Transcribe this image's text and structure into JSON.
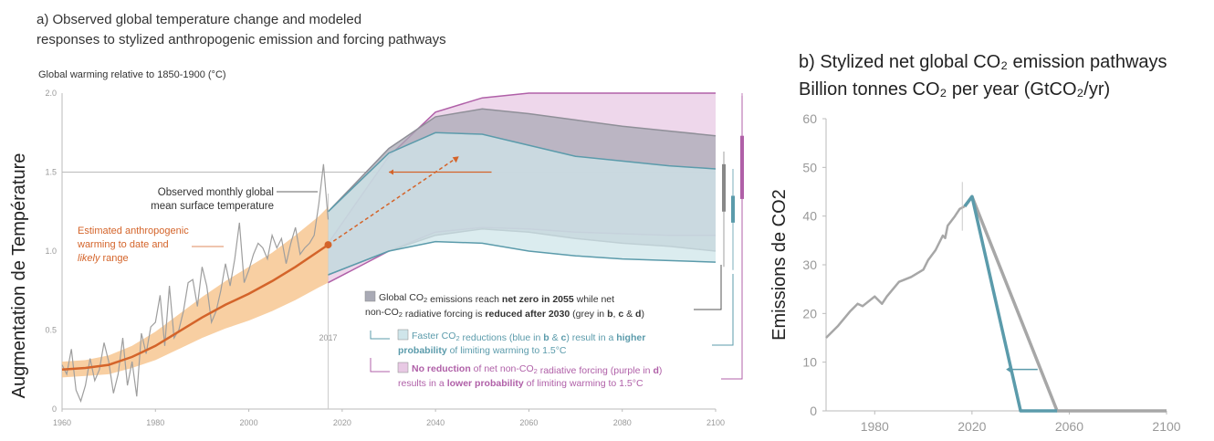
{
  "colors": {
    "observed": "#9e9e9e",
    "anthro": "#d4642a",
    "anthro_band": "#f6c38b",
    "grey": "#8f8f98",
    "blue": "#5b9bab",
    "purple": "#b060a8",
    "callout": "#333333"
  },
  "chart_data": [
    {
      "panel": "a",
      "type": "line",
      "title": "a) Observed global temperature change and modeled",
      "title_line2": "responses to stylized anthropogenic emission and forcing pathways",
      "ylabel_top": "Global warming relative to 1850-1900 (°C)",
      "ylabel": "Augmentation de  Température",
      "xlim": [
        1960,
        2100
      ],
      "ylim": [
        0,
        2.0
      ],
      "xticks": [
        1960,
        1980,
        2000,
        2020,
        2040,
        2060,
        2080,
        2100
      ],
      "xtick_labels": [
        "1960",
        "1980",
        "2000",
        "2020",
        "2040",
        "2060",
        "2080",
        "2100"
      ],
      "yticks": [
        0,
        0.5,
        1.0,
        1.5,
        2.0
      ],
      "ytick_labels": [
        "0",
        "0.5",
        "1.0",
        "1.5",
        "2.0"
      ],
      "year_marker": {
        "x": 2017,
        "label": "2017"
      },
      "reference_line": 1.5,
      "annotations": {
        "observed": [
          "Observed monthly global",
          "mean surface temperature"
        ],
        "anthro_l1": "Estimated anthropogenic",
        "anthro_l2": "warming to date and",
        "anthro_l3a": "likely",
        "anthro_l3b": " range"
      },
      "series": [
        {
          "key": "anthro",
          "x": [
            1960,
            1965,
            1970,
            1975,
            1980,
            1985,
            1990,
            1995,
            2000,
            2005,
            2010,
            2015,
            2017
          ],
          "y": [
            0.25,
            0.26,
            0.28,
            0.33,
            0.4,
            0.49,
            0.58,
            0.66,
            0.73,
            0.81,
            0.9,
            1.0,
            1.04
          ],
          "band_low": [
            0.2,
            0.21,
            0.22,
            0.26,
            0.31,
            0.38,
            0.45,
            0.51,
            0.56,
            0.62,
            0.69,
            0.77,
            0.8
          ],
          "band_high": [
            0.3,
            0.31,
            0.34,
            0.4,
            0.49,
            0.6,
            0.71,
            0.81,
            0.9,
            0.99,
            1.1,
            1.22,
            1.28
          ]
        },
        {
          "key": "observed",
          "x": [
            1960,
            1961,
            1962,
            1963,
            1964,
            1965,
            1966,
            1967,
            1968,
            1969,
            1970,
            1971,
            1972,
            1973,
            1974,
            1975,
            1976,
            1977,
            1978,
            1979,
            1980,
            1981,
            1982,
            1983,
            1984,
            1985,
            1986,
            1987,
            1988,
            1989,
            1990,
            1991,
            1992,
            1993,
            1994,
            1995,
            1996,
            1997,
            1998,
            1999,
            2000,
            2001,
            2002,
            2003,
            2004,
            2005,
            2006,
            2007,
            2008,
            2009,
            2010,
            2011,
            2012,
            2013,
            2014,
            2015,
            2016,
            2017
          ],
          "y": [
            0.28,
            0.22,
            0.38,
            0.12,
            0.05,
            0.15,
            0.32,
            0.18,
            0.25,
            0.42,
            0.3,
            0.1,
            0.22,
            0.45,
            0.15,
            0.3,
            0.08,
            0.48,
            0.35,
            0.52,
            0.55,
            0.72,
            0.4,
            0.78,
            0.45,
            0.5,
            0.62,
            0.8,
            0.82,
            0.65,
            0.9,
            0.78,
            0.55,
            0.62,
            0.75,
            0.92,
            0.78,
            0.95,
            1.18,
            0.8,
            0.88,
            0.98,
            1.05,
            1.02,
            0.95,
            1.1,
            1.02,
            1.08,
            0.92,
            1.05,
            1.15,
            0.98,
            1.02,
            1.05,
            1.1,
            1.3,
            1.55,
            1.2
          ]
        }
      ],
      "pathway_bands": [
        {
          "key": "purple",
          "x": [
            2017,
            2030,
            2040,
            2050,
            2060,
            2070,
            2080,
            2090,
            2100
          ],
          "upper": [
            1.05,
            1.6,
            1.88,
            1.97,
            2.0,
            2.0,
            2.0,
            2.0,
            2.0
          ],
          "lower": [
            0.8,
            1.0,
            1.12,
            1.15,
            1.14,
            1.12,
            1.11,
            1.1,
            1.1
          ]
        },
        {
          "key": "grey",
          "x": [
            2017,
            2030,
            2040,
            2050,
            2060,
            2070,
            2080,
            2090,
            2100
          ],
          "upper": [
            1.25,
            1.65,
            1.85,
            1.9,
            1.87,
            1.83,
            1.79,
            1.76,
            1.73
          ],
          "lower": [
            0.85,
            1.0,
            1.1,
            1.14,
            1.12,
            1.08,
            1.05,
            1.03,
            1.0
          ]
        },
        {
          "key": "blue",
          "x": [
            2017,
            2030,
            2040,
            2050,
            2060,
            2070,
            2080,
            2090,
            2100
          ],
          "upper": [
            1.25,
            1.62,
            1.75,
            1.74,
            1.67,
            1.6,
            1.57,
            1.54,
            1.52
          ],
          "lower": [
            0.85,
            1.0,
            1.06,
            1.05,
            1.0,
            0.97,
            0.95,
            0.94,
            0.93
          ]
        }
      ],
      "legend": [
        {
          "key": "grey",
          "parts": [
            {
              "t": "Global CO",
              "b": false
            },
            {
              "t": "2",
              "b": false,
              "sub": true
            },
            {
              "t": " emissions reach ",
              "b": false
            },
            {
              "t": "net zero in 2055",
              "b": true
            },
            {
              "t": " while net",
              "b": false
            }
          ],
          "parts2": [
            {
              "t": "non-CO",
              "b": false
            },
            {
              "t": "2",
              "b": false,
              "sub": true
            },
            {
              "t": " radiative forcing is ",
              "b": false
            },
            {
              "t": "reduced after 2030",
              "b": true
            },
            {
              "t": " (grey in ",
              "b": false
            },
            {
              "t": "b",
              "b": true
            },
            {
              "t": ", ",
              "b": false
            },
            {
              "t": "c",
              "b": true
            },
            {
              "t": " & ",
              "b": false
            },
            {
              "t": "d",
              "b": true
            },
            {
              "t": ")",
              "b": false
            }
          ]
        },
        {
          "key": "blue",
          "parts": [
            {
              "t": "Faster CO",
              "b": false
            },
            {
              "t": "2",
              "b": false,
              "sub": true
            },
            {
              "t": " reductions (blue in ",
              "b": false
            },
            {
              "t": "b",
              "b": true
            },
            {
              "t": " & ",
              "b": false
            },
            {
              "t": "c",
              "b": true
            },
            {
              "t": ") result in a ",
              "b": false
            },
            {
              "t": "higher",
              "b": true
            }
          ],
          "parts2": [
            {
              "t": "probability",
              "b": true
            },
            {
              "t": " of limiting warming to 1.5°C",
              "b": false
            }
          ]
        },
        {
          "key": "purple",
          "parts": [
            {
              "t": "No reduction",
              "b": true
            },
            {
              "t": " of net non-CO",
              "b": false
            },
            {
              "t": "2",
              "b": false,
              "sub": true
            },
            {
              "t": " radiative forcing (purple in ",
              "b": false
            },
            {
              "t": "d",
              "b": true
            },
            {
              "t": ")",
              "b": false
            }
          ],
          "parts2": [
            {
              "t": "results in a ",
              "b": false
            },
            {
              "t": "lower probability",
              "b": true
            },
            {
              "t": " of limiting warming to 1.5°C",
              "b": false
            }
          ]
        }
      ],
      "range_bars": [
        {
          "key": "grey",
          "low": 1.25,
          "high": 1.55,
          "whisker_low": 0.9,
          "whisker_high": 1.63
        },
        {
          "key": "blue",
          "low": 1.18,
          "high": 1.35,
          "whisker_low": 0.88,
          "whisker_high": 1.52
        },
        {
          "key": "purple",
          "low": 1.33,
          "high": 1.73,
          "whisker_low": 0.8,
          "whisker_high": 2.0
        }
      ]
    },
    {
      "panel": "b",
      "type": "line",
      "title": "b) Stylized net global CO₂ emission pathways",
      "subtitle": "Billion tonnes CO₂ per year (GtCO₂/yr)",
      "ylabel": "Emissions de CO2",
      "xlim": [
        1960,
        2100
      ],
      "ylim": [
        0,
        60
      ],
      "xticks": [
        1980,
        2020,
        2060,
        2100
      ],
      "xtick_labels": [
        "1980",
        "2020",
        "2060",
        "2100"
      ],
      "yticks": [
        0,
        10,
        20,
        30,
        40,
        50,
        60
      ],
      "ytick_labels": [
        "0",
        "10",
        "20",
        "30",
        "40",
        "50",
        "60"
      ],
      "series": [
        {
          "key": "historical",
          "x": [
            1960,
            1965,
            1970,
            1973,
            1975,
            1980,
            1983,
            1985,
            1990,
            1995,
            2000,
            2002,
            2005,
            2008,
            2009,
            2010,
            2013,
            2015,
            2017
          ],
          "y": [
            15,
            17.5,
            20.5,
            22,
            21.5,
            23.5,
            22,
            23.5,
            26.5,
            27.5,
            29,
            31,
            33,
            36,
            35.5,
            38,
            40,
            41.5,
            42
          ]
        },
        {
          "key": "grey",
          "x": [
            2017,
            2020,
            2055,
            2100
          ],
          "y": [
            42,
            44,
            0,
            0
          ]
        },
        {
          "key": "blue",
          "x": [
            2017,
            2020,
            2040,
            2055
          ],
          "y": [
            42,
            44,
            0,
            0
          ]
        }
      ]
    }
  ]
}
